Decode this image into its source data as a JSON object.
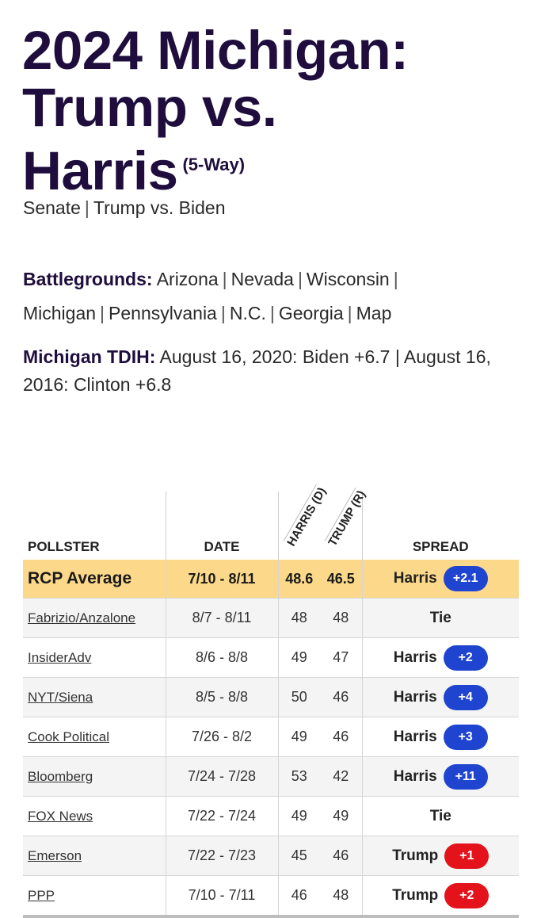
{
  "header": {
    "title_line1": "2024 Michigan:",
    "title_line2": "Trump vs.",
    "title_line3": "Harris",
    "title_tag": "(5-Way)"
  },
  "subnav": [
    "Senate",
    "Trump vs. Biden"
  ],
  "battlegrounds": {
    "label": "Battlegrounds:",
    "items": [
      "Arizona",
      "Nevada",
      "Wisconsin",
      "Michigan",
      "Pennsylvania",
      "N.C.",
      "Georgia",
      "Map"
    ]
  },
  "tdih": {
    "label": "Michigan TDIH:",
    "text": "August 16, 2020: Biden +6.7 | August 16, 2016: Clinton +6.8"
  },
  "table": {
    "headers": {
      "pollster": "POLLSTER",
      "date": "DATE",
      "harris": "HARRIS (D)",
      "trump": "TRUMP (R)",
      "spread": "SPREAD"
    },
    "average": {
      "pollster": "RCP Average",
      "date": "7/10 - 8/11",
      "harris": "48.6",
      "trump": "46.5",
      "leader": "Harris",
      "margin": "+2.1",
      "color": "#1f45d0"
    },
    "rows": [
      {
        "pollster": "Fabrizio/Anzalone",
        "date": "8/7 - 8/11",
        "harris": "48",
        "trump": "48",
        "leader": "Tie",
        "margin": ""
      },
      {
        "pollster": "InsiderAdv",
        "date": "8/6 - 8/8",
        "harris": "49",
        "trump": "47",
        "leader": "Harris",
        "margin": "+2"
      },
      {
        "pollster": "NYT/Siena",
        "date": "8/5 - 8/8",
        "harris": "50",
        "trump": "46",
        "leader": "Harris",
        "margin": "+4"
      },
      {
        "pollster": "Cook Political",
        "date": "7/26 - 8/2",
        "harris": "49",
        "trump": "46",
        "leader": "Harris",
        "margin": "+3"
      },
      {
        "pollster": "Bloomberg",
        "date": "7/24 - 7/28",
        "harris": "53",
        "trump": "42",
        "leader": "Harris",
        "margin": "+11"
      },
      {
        "pollster": "FOX News",
        "date": "7/22 - 7/24",
        "harris": "49",
        "trump": "49",
        "leader": "Tie",
        "margin": ""
      },
      {
        "pollster": "Emerson",
        "date": "7/22 - 7/23",
        "harris": "45",
        "trump": "46",
        "leader": "Trump",
        "margin": "+1"
      },
      {
        "pollster": "PPP",
        "date": "7/10 - 7/11",
        "harris": "46",
        "trump": "48",
        "leader": "Trump",
        "margin": "+2"
      }
    ]
  },
  "colors": {
    "harris": "#1f45d0",
    "trump": "#e3121b",
    "average_bg": "#fcd98a",
    "title": "#1f0e3d"
  }
}
